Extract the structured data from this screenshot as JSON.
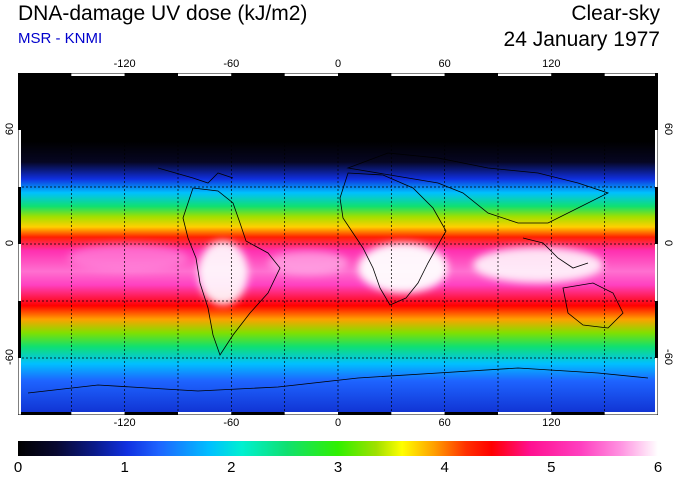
{
  "header": {
    "title": "DNA-damage UV dose (kJ/m2)",
    "source": "MSR - KNMI",
    "condition": "Clear-sky",
    "date": "24 January 1977"
  },
  "map": {
    "lon_labels": [
      "-120",
      "-60",
      "0",
      "60",
      "120"
    ],
    "lat_labels": [
      "60",
      "0",
      "-60"
    ],
    "lon_values": [
      -120,
      -60,
      0,
      60,
      120
    ],
    "lat_values": [
      60,
      0,
      -60
    ],
    "grid_lon_step": 30,
    "grid_lat_step": 30,
    "lon_range": [
      -180,
      180
    ],
    "lat_range": [
      -90,
      90
    ]
  },
  "colorbar": {
    "labels": [
      "0",
      "1",
      "2",
      "3",
      "4",
      "5",
      "6"
    ],
    "min": 0,
    "max": 6
  }
}
